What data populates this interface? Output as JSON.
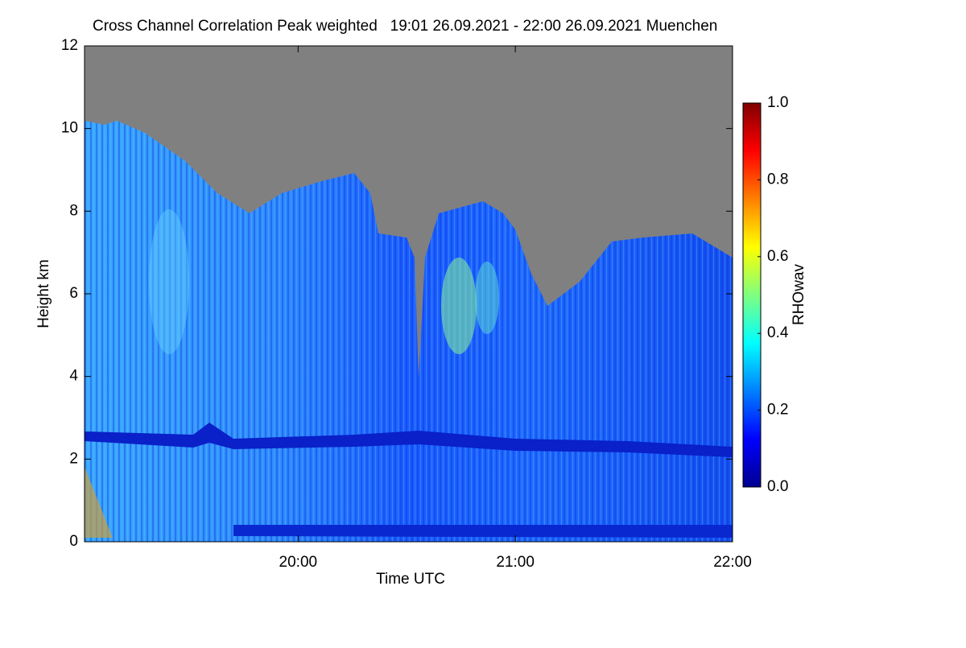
{
  "chart_data": {
    "type": "heatmap",
    "title": "Cross Channel Correlation Peak weighted   19:01 26.09.2021 - 22:00 26.09.2021 Muenchen",
    "x_label": "Time UTC",
    "y_label": "Height km",
    "xlim": [
      "19:01",
      "22:00"
    ],
    "xticks": [
      "20:00",
      "21:00",
      "22:00"
    ],
    "ylim": [
      0,
      12
    ],
    "yticks": [
      0,
      2,
      4,
      6,
      8,
      10,
      12
    ],
    "colorbar": {
      "label": "RHOwav",
      "lim": [
        0,
        1
      ],
      "ticks": [
        {
          "value": 0,
          "label": "0.0"
        },
        {
          "value": 0.2,
          "label": "0.2"
        },
        {
          "value": 0.4,
          "label": "0.4"
        },
        {
          "value": 0.6,
          "label": "0.6"
        },
        {
          "value": 0.8,
          "label": "0.8"
        },
        {
          "value": 1,
          "label": "1.0"
        }
      ]
    },
    "background_color": "#808080"
  }
}
